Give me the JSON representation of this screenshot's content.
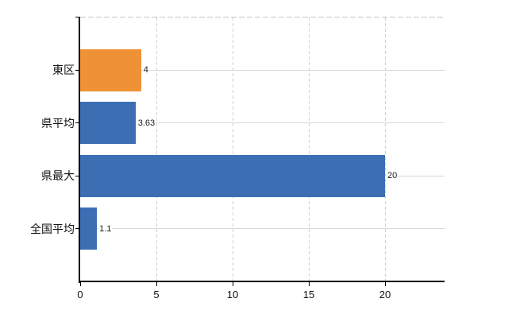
{
  "chart_data": {
    "type": "bar",
    "orientation": "horizontal",
    "title": "",
    "xlabel": "",
    "ylabel": "",
    "categories": [
      "東区",
      "県平均",
      "県最大",
      "全国平均"
    ],
    "values": [
      4,
      3.63,
      20,
      1.1
    ],
    "value_labels": [
      "4",
      "3.63",
      "20",
      "1.1"
    ],
    "bar_colors": [
      "#EF9236",
      "#3C6EB4",
      "#3C6EB4",
      "#3C6EB4"
    ],
    "x_ticks": [
      0,
      5,
      10,
      15,
      20
    ],
    "x_tick_labels": [
      "0",
      "5",
      "10",
      "15",
      "20"
    ],
    "xlim": [
      0,
      23.9
    ],
    "legend": "none",
    "grid": {
      "vertical": "dashed",
      "horizontal": "solid",
      "top_border": "dashed"
    },
    "colors": {
      "highlight_bar": "#EF9236",
      "default_bar": "#3C6EB4",
      "axis": "#000000",
      "h_gridline": "#d5dcd5",
      "v_gridline": "#d0d0d0",
      "top_border": "#c7c7c7",
      "text": "#1a1a1a",
      "background": "#ffffff"
    }
  }
}
